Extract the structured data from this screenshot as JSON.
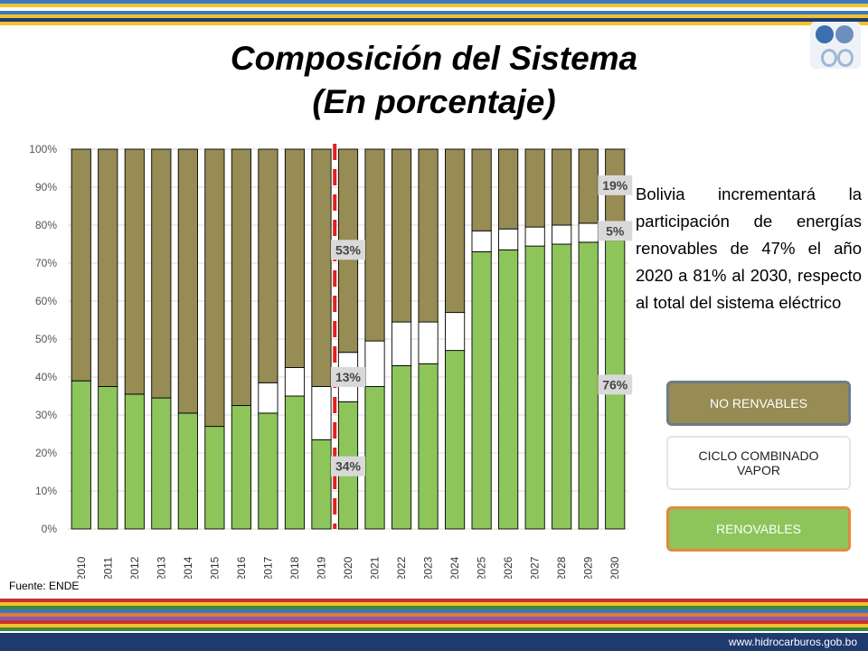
{
  "header": {
    "title_line1": "Composición del Sistema",
    "title_line2": "(En porcentaje)"
  },
  "description": "Bolivia incrementará la participación de energías renovables de 47% el año 2020 a 81% al 2030, respecto al total del sistema eléctrico",
  "legend": {
    "no_renovables": "NO RENVABLES",
    "ciclo_combinado": "CICLO COMBINADO VAPOR",
    "renovables": "RENOVABLES"
  },
  "source": "Fuente: ENDE",
  "footer": {
    "url": "www.hidrocarburos.gob.bo"
  },
  "colors": {
    "renovables": "#8dc55a",
    "ciclo": "#ffffff",
    "no_renovables": "#968c54",
    "marker": "#e02020",
    "label_bg": "#d9d9d9"
  },
  "chart_data": {
    "type": "bar",
    "stacked": true,
    "categories": [
      "2010",
      "2011",
      "2012",
      "2013",
      "2014",
      "2015",
      "2016",
      "2017",
      "2018",
      "2019",
      "2020",
      "2021",
      "2022",
      "2023",
      "2024",
      "2025",
      "2026",
      "2027",
      "2028",
      "2029",
      "2030"
    ],
    "series": [
      {
        "name": "RENOVABLES",
        "values": [
          39,
          37.5,
          35.5,
          34.5,
          30.5,
          27,
          32.5,
          30.5,
          35,
          23.5,
          33.5,
          37.5,
          43,
          43.5,
          47,
          73,
          73.5,
          74.5,
          75,
          75.5,
          76
        ]
      },
      {
        "name": "CICLO COMBINADO VAPOR",
        "values": [
          0,
          0,
          0,
          0,
          0,
          0,
          0,
          8,
          7.5,
          14,
          13,
          12,
          11.5,
          11,
          10,
          5.5,
          5.5,
          5,
          5,
          5,
          5
        ]
      },
      {
        "name": "NO RENVABLES",
        "values": [
          61,
          62.5,
          64.5,
          65.5,
          69.5,
          73,
          67.5,
          61.5,
          57.5,
          62.5,
          53.5,
          50.5,
          45.5,
          45.5,
          43,
          21.5,
          21,
          20.5,
          20,
          19.5,
          19
        ]
      }
    ],
    "ylim": [
      0,
      100
    ],
    "yticks": [
      "0%",
      "10%",
      "20%",
      "30%",
      "40%",
      "50%",
      "60%",
      "70%",
      "80%",
      "90%",
      "100%"
    ],
    "grid": true,
    "annotations": [
      {
        "text": "53%",
        "category": "2020",
        "y": 73.5
      },
      {
        "text": "13%",
        "category": "2020",
        "y": 40
      },
      {
        "text": "34%",
        "category": "2020",
        "y": 16.5
      },
      {
        "text": "19%",
        "category": "2030",
        "y": 90.5
      },
      {
        "text": "5%",
        "category": "2030",
        "y": 78.5
      },
      {
        "text": "76%",
        "category": "2030",
        "y": 38
      }
    ],
    "marker_between": [
      "2019",
      "2020"
    ]
  }
}
